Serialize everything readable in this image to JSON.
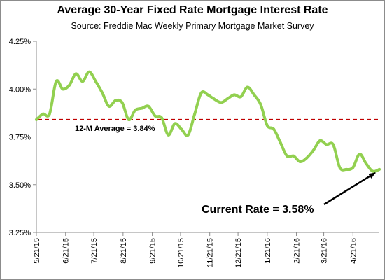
{
  "chart_data": {
    "type": "line",
    "title": "Average 30-Year Fixed Rate Mortgage Interest Rate",
    "subtitle": "Source: Freddie Mac Weekly Primary Mortgage Market Survey",
    "xlabel": "",
    "ylabel": "",
    "ylim": [
      3.25,
      4.25
    ],
    "y_ticks": [
      {
        "value": 3.25,
        "label": "3.25%"
      },
      {
        "value": 3.5,
        "label": "3.50%"
      },
      {
        "value": 3.75,
        "label": "3.75%"
      },
      {
        "value": 4.0,
        "label": "4.00%"
      },
      {
        "value": 4.25,
        "label": "4.25%"
      }
    ],
    "x_ticks": [
      {
        "date": "2015-05-21",
        "label": "5/21/15"
      },
      {
        "date": "2015-06-21",
        "label": "6/21/15"
      },
      {
        "date": "2015-07-21",
        "label": "7/21/15"
      },
      {
        "date": "2015-08-21",
        "label": "8/21/15"
      },
      {
        "date": "2015-09-21",
        "label": "9/21/15"
      },
      {
        "date": "2015-10-21",
        "label": "10/21/15"
      },
      {
        "date": "2015-11-21",
        "label": "11/21/15"
      },
      {
        "date": "2015-12-21",
        "label": "12/21/15"
      },
      {
        "date": "2016-01-21",
        "label": "1/21/16"
      },
      {
        "date": "2016-02-21",
        "label": "2/21/16"
      },
      {
        "date": "2016-03-21",
        "label": "3/21/16"
      },
      {
        "date": "2016-04-21",
        "label": "4/21/16"
      }
    ],
    "x_range": [
      "2015-05-21",
      "2016-05-19"
    ],
    "grid": false,
    "series": [
      {
        "color": "#92d050",
        "x": [
          "2015-05-21",
          "2015-05-28",
          "2015-06-04",
          "2015-06-11",
          "2015-06-18",
          "2015-06-25",
          "2015-07-02",
          "2015-07-09",
          "2015-07-16",
          "2015-07-23",
          "2015-07-30",
          "2015-08-06",
          "2015-08-13",
          "2015-08-20",
          "2015-08-27",
          "2015-09-03",
          "2015-09-10",
          "2015-09-17",
          "2015-09-24",
          "2015-10-01",
          "2015-10-08",
          "2015-10-15",
          "2015-10-22",
          "2015-10-29",
          "2015-11-05",
          "2015-11-12",
          "2015-11-19",
          "2015-11-25",
          "2015-12-03",
          "2015-12-10",
          "2015-12-17",
          "2015-12-24",
          "2015-12-31",
          "2016-01-07",
          "2016-01-14",
          "2016-01-21",
          "2016-01-28",
          "2016-02-04",
          "2016-02-11",
          "2016-02-18",
          "2016-02-25",
          "2016-03-03",
          "2016-03-10",
          "2016-03-17",
          "2016-03-24",
          "2016-03-31",
          "2016-04-07",
          "2016-04-14",
          "2016-04-21",
          "2016-04-28",
          "2016-05-05",
          "2016-05-12",
          "2016-05-19"
        ],
        "values": [
          3.84,
          3.87,
          3.87,
          4.04,
          4.0,
          4.02,
          4.08,
          4.04,
          4.09,
          4.04,
          3.98,
          3.91,
          3.94,
          3.93,
          3.84,
          3.89,
          3.9,
          3.91,
          3.86,
          3.85,
          3.76,
          3.82,
          3.79,
          3.76,
          3.87,
          3.98,
          3.97,
          3.95,
          3.93,
          3.95,
          3.97,
          3.96,
          4.01,
          3.97,
          3.92,
          3.81,
          3.79,
          3.72,
          3.65,
          3.65,
          3.62,
          3.64,
          3.68,
          3.73,
          3.71,
          3.71,
          3.59,
          3.58,
          3.59,
          3.66,
          3.61,
          3.57,
          3.58
        ]
      }
    ],
    "reference_line": {
      "value": 3.84,
      "color": "#c00000",
      "style": "dashed",
      "label": "12-M Average = 3.84%"
    },
    "annotations": [
      {
        "text": "Current Rate = 3.58%",
        "target_date": "2016-05-19",
        "target_value": 3.58
      }
    ]
  }
}
